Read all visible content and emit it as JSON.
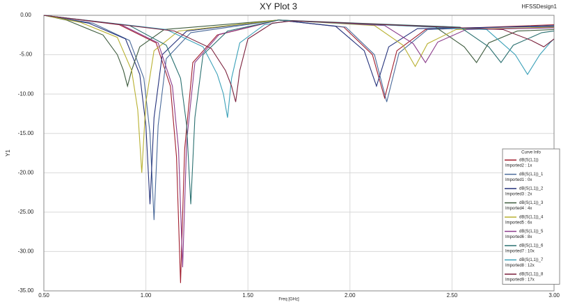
{
  "chart_data": {
    "type": "line",
    "title": "XY Plot 3",
    "design": "HFSSDesign1",
    "x_label": "Freq [GHz]",
    "y_label": "Y1",
    "legend_title": "Curve Info",
    "grid": true,
    "xlim": [
      0.5,
      3.0
    ],
    "ylim": [
      -35,
      0
    ],
    "xticks": [
      {
        "value": 0.5,
        "label": "0.50"
      },
      {
        "value": 1.0,
        "label": "1.00"
      },
      {
        "value": 1.5,
        "label": "1.50"
      },
      {
        "value": 2.0,
        "label": "2.00"
      },
      {
        "value": 2.5,
        "label": "2.50"
      },
      {
        "value": 3.0,
        "label": "3.00"
      }
    ],
    "yticks": [
      {
        "value": 0,
        "label": "0.00"
      },
      {
        "value": -5,
        "label": "-5.00"
      },
      {
        "value": -10,
        "label": "-10.00"
      },
      {
        "value": -15,
        "label": "-15.00"
      },
      {
        "value": -20,
        "label": "-20.00"
      },
      {
        "value": -25,
        "label": "-25.00"
      },
      {
        "value": -30,
        "label": "-30.00"
      },
      {
        "value": -35,
        "label": "-35.00"
      }
    ],
    "series": [
      {
        "name": "dB(S(1,1))",
        "source": "Imported2 : 1x",
        "color": "#a01c2c",
        "x": [
          0.5,
          0.87,
          1.05,
          1.12,
          1.15,
          1.17,
          1.19,
          1.23,
          1.35,
          1.65,
          1.97,
          2.11,
          2.17,
          2.23,
          2.37,
          3.0
        ],
        "values": [
          0,
          -1.2,
          -3.5,
          -9,
          -18,
          -34,
          -17,
          -6,
          -2.5,
          -0.6,
          -1.5,
          -5,
          -10.5,
          -4.5,
          -1.8,
          -1.2
        ]
      },
      {
        "name": "dB(S(1,1))_1",
        "source": "Imported1 : 0x",
        "color": "#4a6a9a",
        "x": [
          0.5,
          0.74,
          0.92,
          0.99,
          1.02,
          1.04,
          1.06,
          1.1,
          1.22,
          1.65,
          1.98,
          2.12,
          2.18,
          2.24,
          2.38,
          3.0
        ],
        "values": [
          0,
          -1,
          -3.2,
          -8,
          -15,
          -26,
          -14,
          -5.5,
          -2.2,
          -0.6,
          -1.5,
          -5,
          -11,
          -4.8,
          -1.8,
          -1.3
        ]
      },
      {
        "name": "dB(S(1,1))_2",
        "source": "Imported3 : 2x",
        "color": "#23307a",
        "x": [
          0.5,
          0.72,
          0.9,
          0.97,
          1.0,
          1.02,
          1.04,
          1.08,
          1.2,
          1.65,
          1.93,
          2.07,
          2.13,
          2.19,
          2.33,
          3.0
        ],
        "values": [
          0,
          -1,
          -3,
          -7.5,
          -14,
          -24,
          -13,
          -5,
          -2,
          -0.6,
          -1.4,
          -4.5,
          -9,
          -4,
          -1.7,
          -1.4
        ]
      },
      {
        "name": "dB(S(1,1))_3",
        "source": "Imported4 : 4x",
        "color": "#3c5a3c",
        "x": [
          0.5,
          0.61,
          0.79,
          0.86,
          0.89,
          0.91,
          0.93,
          0.97,
          1.09,
          1.65,
          2.42,
          2.56,
          2.62,
          2.68,
          2.82,
          3.0
        ],
        "values": [
          0,
          -0.6,
          -2.5,
          -5,
          -7,
          -9,
          -7,
          -4,
          -1.8,
          -0.6,
          -1.5,
          -4,
          -6,
          -3.5,
          -2,
          -1.8
        ]
      },
      {
        "name": "dB(S(1,1))_4",
        "source": "Imported5 : 6x",
        "color": "#b8b030",
        "x": [
          0.5,
          0.68,
          0.86,
          0.93,
          0.96,
          0.98,
          1.0,
          1.04,
          1.16,
          1.65,
          2.12,
          2.26,
          2.32,
          2.38,
          2.52,
          3.0
        ],
        "values": [
          0,
          -0.9,
          -2.8,
          -7,
          -12,
          -20,
          -11,
          -4.5,
          -2,
          -0.6,
          -1.3,
          -3.8,
          -6.5,
          -3.6,
          -1.8,
          -1.5
        ]
      },
      {
        "name": "dB(S(1,1))_5",
        "source": "Imported6 : 8x",
        "color": "#8a3a8a",
        "x": [
          0.5,
          0.88,
          1.06,
          1.13,
          1.16,
          1.18,
          1.2,
          1.24,
          1.36,
          1.65,
          2.17,
          2.31,
          2.37,
          2.43,
          2.57,
          3.0
        ],
        "values": [
          0,
          -1.2,
          -3.5,
          -9,
          -17,
          -32,
          -16,
          -6,
          -2.4,
          -0.6,
          -1.3,
          -3.6,
          -6,
          -3.4,
          -1.8,
          -1.6
        ]
      },
      {
        "name": "dB(S(1,1))_6",
        "source": "Imported7 : 10x",
        "color": "#2a7070",
        "x": [
          0.5,
          0.92,
          1.1,
          1.17,
          1.2,
          1.22,
          1.24,
          1.28,
          1.4,
          1.65,
          2.54,
          2.68,
          2.74,
          2.8,
          2.94,
          3.0
        ],
        "values": [
          0,
          -1.3,
          -3.8,
          -8,
          -14,
          -24,
          -13,
          -5,
          -2,
          -0.6,
          -1.5,
          -4,
          -6,
          -3.8,
          -2.2,
          -2
        ]
      },
      {
        "name": "dB(S(1,1))_7",
        "source": "Imported8 : 12x",
        "color": "#3aa0b8",
        "x": [
          0.5,
          1.1,
          1.28,
          1.35,
          1.38,
          1.4,
          1.42,
          1.46,
          1.58,
          1.7,
          2.67,
          2.81,
          2.87,
          2.93,
          2.98,
          3.0
        ],
        "values": [
          0,
          -1.8,
          -4,
          -7.5,
          -10,
          -13,
          -8,
          -3.5,
          -1.2,
          -0.7,
          -1.8,
          -5,
          -7.5,
          -5,
          -3.5,
          -3
        ]
      },
      {
        "name": "dB(S(1,1))_8",
        "source": "Imported9 : 17x",
        "color": "#7a1f3a",
        "x": [
          0.5,
          1.14,
          1.32,
          1.39,
          1.42,
          1.44,
          1.46,
          1.5,
          1.62,
          1.72,
          2.75,
          2.89,
          2.95,
          3.0
        ],
        "values": [
          0,
          -2,
          -4.2,
          -7,
          -9,
          -11,
          -7,
          -3,
          -1,
          -0.7,
          -1.8,
          -3.2,
          -4,
          -3
        ]
      }
    ]
  }
}
